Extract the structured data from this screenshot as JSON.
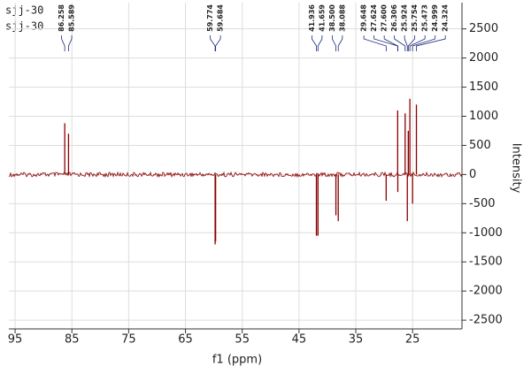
{
  "chart_data": {
    "type": "nmr",
    "titles": [
      "sjj-30",
      "sjj-30"
    ],
    "x_label": "f1 (ppm)",
    "y_label": "Intensity",
    "xlim": [
      96.1,
      16.3
    ],
    "xticks": [
      95,
      85,
      75,
      65,
      55,
      45,
      35,
      25
    ],
    "ylim": [
      -2650,
      2950
    ],
    "yticks": [
      -2500,
      -2000,
      -1500,
      -1000,
      -500,
      0,
      500,
      1000,
      1500,
      2000,
      2500
    ],
    "grid": true,
    "color": "#8b0000",
    "label_color": "#1a2a7a",
    "peaks": {
      "x": [
        86.258,
        85.589,
        59.774,
        59.684,
        41.936,
        41.659,
        38.5,
        38.088,
        29.648,
        27.624,
        27.6,
        26.306,
        25.924,
        25.754,
        25.473,
        24.999,
        24.324
      ],
      "labels": [
        "86.258",
        "85.589",
        "59.774",
        "59.684",
        "41.936",
        "41.659",
        "38.500",
        "38.088",
        "29.648",
        "27.624",
        "27.600",
        "26.306",
        "25.924",
        "25.754",
        "25.473",
        "24.999",
        "24.324"
      ],
      "values": [
        880,
        700,
        -1200,
        -1150,
        -1050,
        -1050,
        -700,
        -800,
        -450,
        1100,
        -300,
        1050,
        -800,
        750,
        1300,
        -500,
        1200
      ]
    }
  }
}
